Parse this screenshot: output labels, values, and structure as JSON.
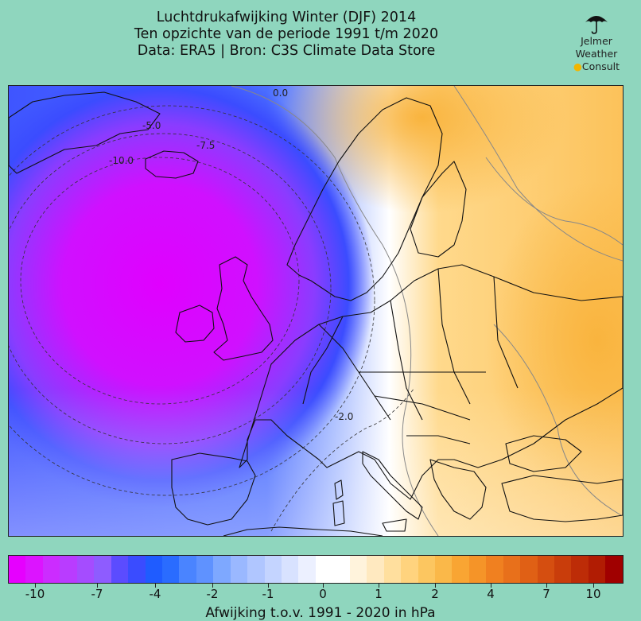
{
  "header": {
    "title_line1": "Luchtdrukafwijking Winter (DJF) 2014",
    "title_line2": "Ten opzichte van de periode 1991 t/m 2020",
    "title_line3": "Data: ERA5 | Bron: C3S Climate Data Store"
  },
  "logo": {
    "line1": "Jelmer",
    "line2": "Weather",
    "line3": "Consult",
    "icon": "umbrella-icon"
  },
  "map": {
    "region": "Europe",
    "contour_labels": [
      "0.0",
      "-5.0",
      "-7.5",
      "-10.0",
      "-2.0"
    ]
  },
  "colorbar": {
    "colors": [
      "#e600ff",
      "#dc14ff",
      "#cc2cff",
      "#b93cff",
      "#a54cff",
      "#8e5cff",
      "#5b4cff",
      "#3a4cff",
      "#1f5cff",
      "#2a6cff",
      "#4a84ff",
      "#5f92ff",
      "#7ea8ff",
      "#9ab8ff",
      "#b0c6ff",
      "#c4d4ff",
      "#d8e2ff",
      "#ecf0ff",
      "#ffffff",
      "#ffffff",
      "#fff3dc",
      "#ffe9c0",
      "#ffdf9e",
      "#ffd37e",
      "#fcc660",
      "#fab849",
      "#f9a533",
      "#f59428",
      "#f08020",
      "#e8701b",
      "#e06015",
      "#d54e10",
      "#c93d0b",
      "#bd2c07",
      "#b11c03",
      "#a00000"
    ],
    "tick_labels": [
      "-10",
      "-7",
      "-4",
      "-2",
      "-1",
      "0",
      "1",
      "2",
      "4",
      "7",
      "10"
    ],
    "title": "Afwijking t.o.v. 1991 - 2020 in hPa"
  }
}
